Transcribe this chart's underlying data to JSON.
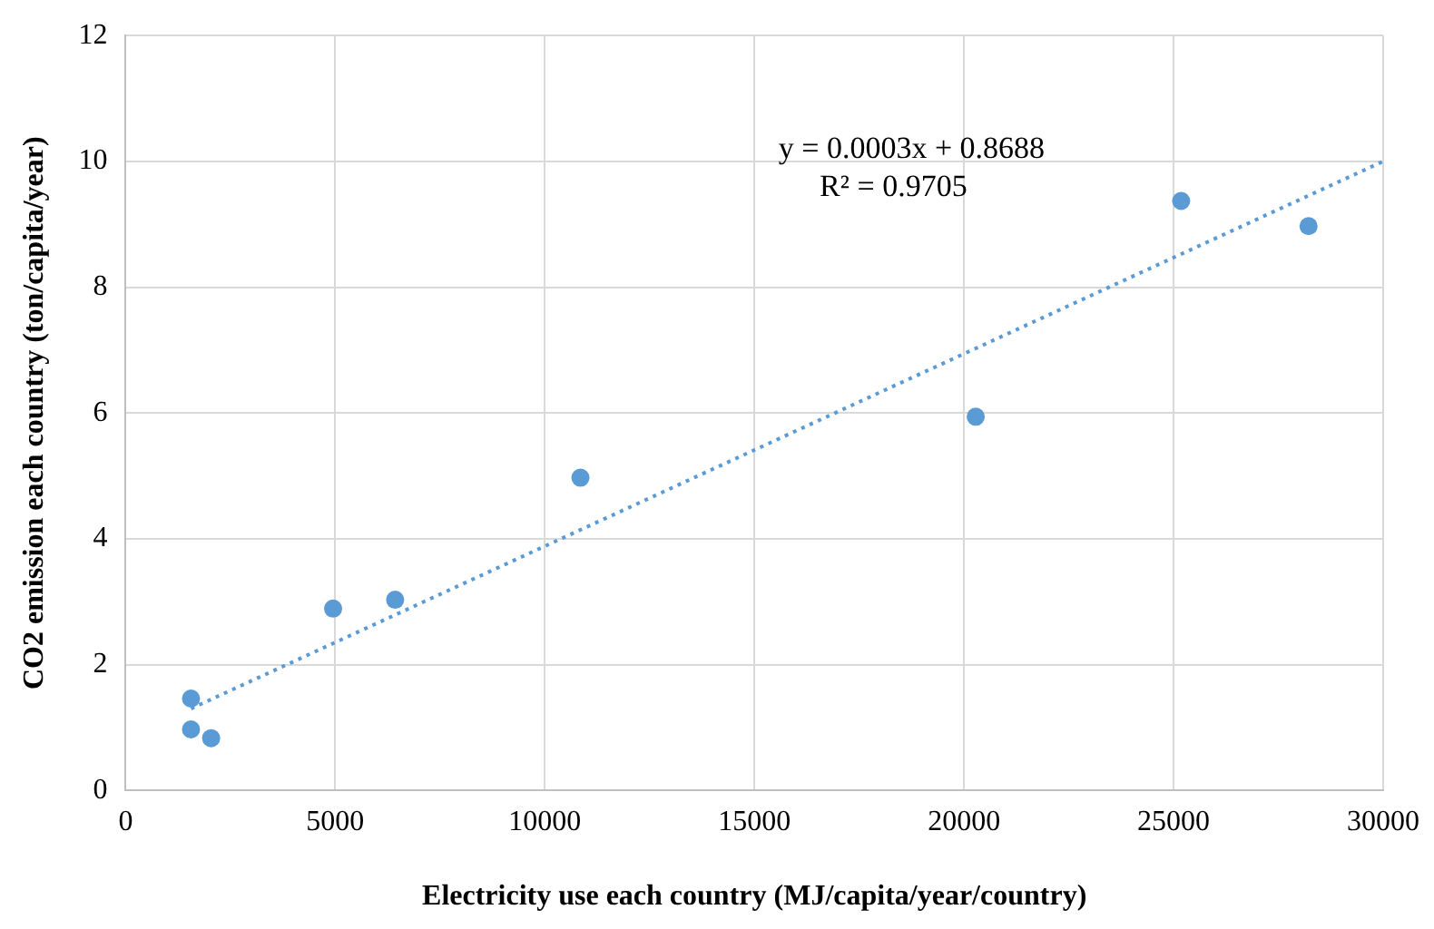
{
  "chart_data": {
    "type": "scatter",
    "xlabel": "Electricity use each country (MJ/capita/year/country)",
    "ylabel": "CO2 emission each country (ton/capita/year)",
    "x": [
      1560,
      1560,
      2040,
      4950,
      6430,
      10850,
      20280,
      25180,
      28220
    ],
    "series": [
      {
        "color": "#5b9bd5",
        "values": [
          1.46,
          0.97,
          0.83,
          2.89,
          3.03,
          4.97,
          5.94,
          9.37,
          8.97
        ],
        "marker": "circle"
      },
      {
        "type": "line",
        "color": "#5b9bd5",
        "x": [
          1560,
          30000
        ],
        "values": [
          1.3,
          10.0
        ],
        "line_style": "dotted",
        "marker": "none"
      }
    ],
    "annotations": [
      "y = 0.0003x + 0.8688",
      "R² = 0.9705"
    ],
    "xlim": [
      0,
      30000
    ],
    "xticks": [
      0,
      5000,
      10000,
      15000,
      20000,
      25000,
      30000
    ],
    "ylim": [
      0,
      12
    ],
    "yticks": [
      0,
      2,
      4,
      6,
      8,
      10,
      12
    ],
    "grid": true,
    "legend": false
  }
}
